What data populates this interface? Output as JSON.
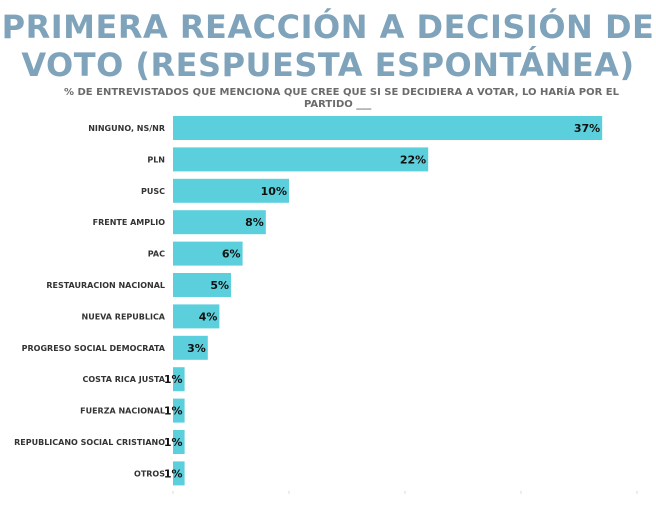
{
  "title_line1": "PRIMERA REACCIÓN A DECISIÓN DE",
  "title_line2": "VOTO (RESPUESTA ESPONTÁNEA)",
  "subtitle_line1": "% DE ENTREVISTADOS QUE MENCIONA QUE CREE QUE SI SE DECIDIERA A VOTAR, LO HARÍA POR EL",
  "subtitle_line2": "PARTIDO ___",
  "colors": {
    "bar": "#5ccfdc",
    "title": "#7fa3bb"
  },
  "chart_data": {
    "type": "bar",
    "orientation": "horizontal",
    "categories": [
      "NINGUNO, NS/NR",
      "PLN",
      "PUSC",
      "FRENTE AMPLIO",
      "PAC",
      "RESTAURACION NACIONAL",
      "NUEVA REPUBLICA",
      "PROGRESO SOCIAL DEMOCRATA",
      "COSTA RICA JUSTA",
      "FUERZA NACIONAL",
      "REPUBLICANO SOCIAL CRISTIANO",
      "OTROS"
    ],
    "values": [
      37,
      22,
      10,
      8,
      6,
      5,
      4,
      3,
      1,
      1,
      1,
      1
    ],
    "value_labels": [
      "37%",
      "22%",
      "10%",
      "8%",
      "6%",
      "5%",
      "4%",
      "3%",
      "1%",
      "1%",
      "1%",
      "1%"
    ],
    "xlim": [
      0,
      40
    ],
    "grid": false
  }
}
